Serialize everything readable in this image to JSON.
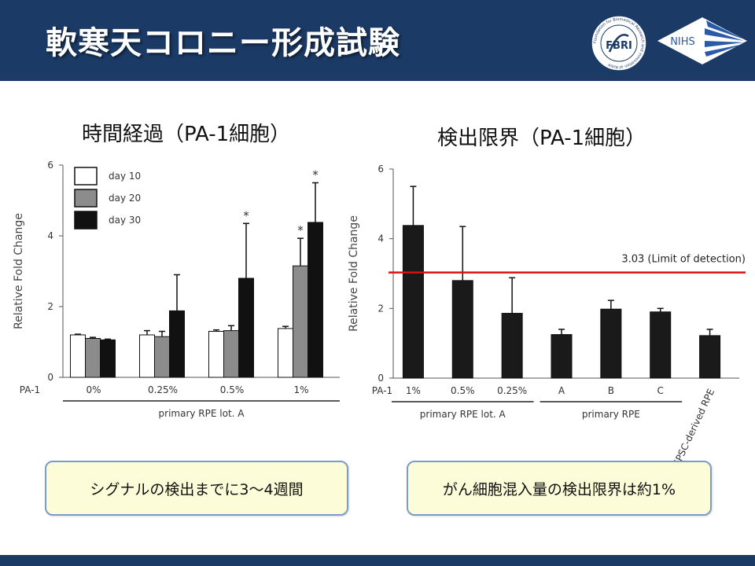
{
  "slide": {
    "title": "軟寒天コロニー形成試験",
    "logos": [
      {
        "name": "fbri-logo",
        "text": "FBRI",
        "ring_text": "Foundation for Biomedical Research and Innovation at Kobe"
      },
      {
        "name": "nihs-logo",
        "text": "NIHS"
      }
    ],
    "callouts": [
      "シグナルの検出までに3～4週間",
      "がん細胞混入量の検出限界は約1%"
    ]
  },
  "colors": {
    "header": "#1b3a66",
    "day10": "#ffffff",
    "day20": "#8c8c8c",
    "day30": "#111111",
    "limit_line": "#dd1111",
    "callout_bg": "#fdfcd8",
    "callout_border": "#7a9cc8"
  },
  "chart_data": [
    {
      "type": "bar",
      "title": "時間経過（PA-1細胞）",
      "ylabel": "Relative Fold Change",
      "ylim": [
        0,
        6
      ],
      "yticks": [
        0,
        2,
        4,
        6
      ],
      "row_label": "PA-1",
      "categories": [
        "0%",
        "0.25%",
        "0.5%",
        "1%"
      ],
      "group_label": "primary RPE lot. A",
      "legend": {
        "position": "top-left",
        "entries": [
          "day 10",
          "day 20",
          "day 30"
        ]
      },
      "series": [
        {
          "name": "day 10",
          "values": [
            1.2,
            1.2,
            1.3,
            1.38
          ],
          "errors": [
            0.02,
            0.12,
            0.04,
            0.06
          ],
          "sig": [
            false,
            false,
            false,
            false
          ]
        },
        {
          "name": "day 20",
          "values": [
            1.1,
            1.15,
            1.32,
            3.15
          ],
          "errors": [
            0.03,
            0.15,
            0.14,
            0.78
          ],
          "sig": [
            false,
            false,
            false,
            true
          ]
        },
        {
          "name": "day 30",
          "values": [
            1.06,
            1.88,
            2.8,
            4.38
          ],
          "errors": [
            0.02,
            1.02,
            1.55,
            1.12
          ],
          "sig": [
            false,
            false,
            true,
            true
          ]
        }
      ],
      "sig_marker": "*"
    },
    {
      "type": "bar",
      "title": "検出限界（PA-1細胞）",
      "ylabel": "Relative Fold Change",
      "ylim": [
        0,
        6
      ],
      "yticks": [
        0,
        2,
        4,
        6
      ],
      "row_label": "PA-1",
      "categories": [
        "1%",
        "0.5%",
        "0.25%",
        "A",
        "B",
        "C",
        "hiPSC-derived RPE"
      ],
      "values": [
        4.38,
        2.8,
        1.86,
        1.25,
        1.98,
        1.9,
        1.22
      ],
      "errors": [
        1.12,
        1.55,
        1.02,
        0.15,
        0.25,
        0.1,
        0.18
      ],
      "groups": [
        {
          "label": "primary RPE lot. A",
          "from": 0,
          "to": 2
        },
        {
          "label": "primary RPE",
          "from": 3,
          "to": 5
        }
      ],
      "rotated_categories": [
        "hiPSC-derived RPE"
      ],
      "threshold": {
        "value": 3.03,
        "label": "3.03 (Limit of detection)"
      }
    }
  ]
}
